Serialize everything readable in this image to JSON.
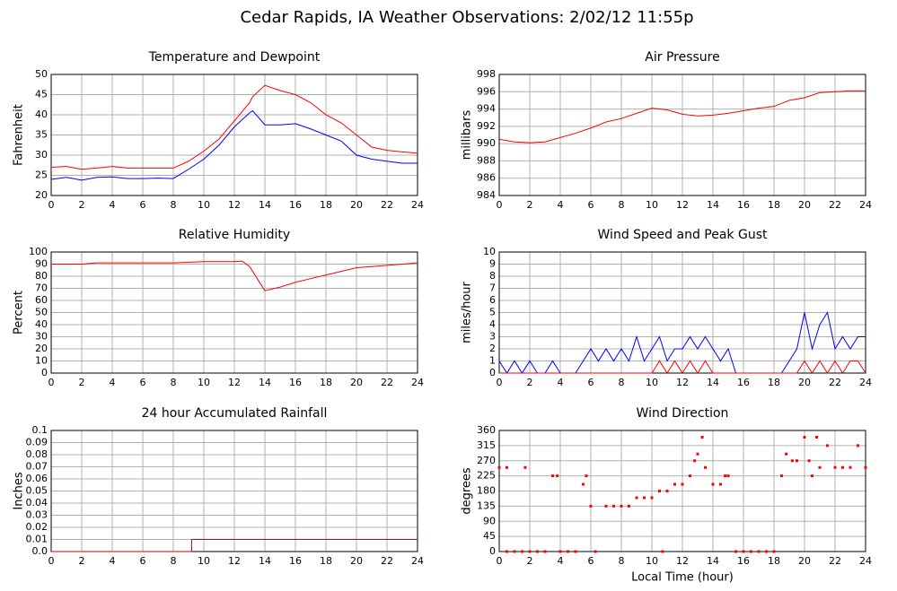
{
  "title": "Cedar Rapids, IA Weather Observations: 2/02/12 11:55p",
  "chart_data": [
    {
      "type": "line",
      "title": "Temperature and Dewpoint",
      "ylabel": "Fahrenheit",
      "x": [
        0,
        1,
        2,
        3,
        4,
        5,
        6,
        7,
        8,
        9,
        10,
        11,
        12,
        13,
        13.2,
        14,
        15,
        16,
        17,
        18,
        19,
        20,
        21,
        22,
        23,
        24
      ],
      "series": [
        {
          "color": "#ff0000",
          "values": [
            27,
            27.2,
            26.5,
            26.8,
            27.2,
            26.8,
            26.8,
            26.8,
            26.8,
            28.5,
            31,
            34,
            38.5,
            43,
            44.5,
            47.3,
            46,
            45,
            43,
            40,
            38,
            35,
            32,
            31.2,
            30.8,
            30.5
          ]
        },
        {
          "color": "#0000ff",
          "values": [
            24,
            24.5,
            23.8,
            24.5,
            24.6,
            24.2,
            24.2,
            24.3,
            24.2,
            26.5,
            29,
            32.5,
            37,
            40.5,
            41,
            37.5,
            37.5,
            37.8,
            36.5,
            35,
            33.5,
            30,
            29,
            28.5,
            28,
            28
          ]
        }
      ],
      "xlim": [
        0,
        24
      ],
      "xticks": [
        0,
        2,
        4,
        6,
        8,
        10,
        12,
        14,
        16,
        18,
        20,
        22,
        24
      ],
      "ylim": [
        20,
        50
      ],
      "yticks": [
        20,
        25,
        30,
        35,
        40,
        45,
        50
      ],
      "grid": true
    },
    {
      "type": "line",
      "title": "Air Pressure",
      "ylabel": "millibars",
      "x": [
        0,
        1,
        2,
        3,
        4,
        5,
        6,
        7,
        8,
        9,
        10,
        11,
        12,
        13,
        14,
        15,
        16,
        17,
        18,
        19,
        20,
        21,
        22,
        23,
        24
      ],
      "series": [
        {
          "color": "#ff0000",
          "values": [
            990.5,
            990.2,
            990.1,
            990.2,
            990.7,
            991.2,
            991.8,
            992.5,
            992.9,
            993.5,
            994.1,
            993.9,
            993.4,
            993.2,
            993.3,
            993.5,
            993.8,
            994.1,
            994.3,
            995,
            995.3,
            995.9,
            996,
            996.1,
            996.1
          ]
        }
      ],
      "xlim": [
        0,
        24
      ],
      "xticks": [
        0,
        2,
        4,
        6,
        8,
        10,
        12,
        14,
        16,
        18,
        20,
        22,
        24
      ],
      "ylim": [
        984,
        998
      ],
      "yticks": [
        984,
        986,
        988,
        990,
        992,
        994,
        996,
        998
      ],
      "grid": true
    },
    {
      "type": "line",
      "title": "Relative Humidity",
      "ylabel": "Percent",
      "x": [
        0,
        2,
        3,
        4,
        6,
        8,
        10,
        12,
        12.5,
        13,
        13.5,
        14,
        15,
        16,
        17,
        18,
        19,
        20,
        21,
        22,
        23,
        24
      ],
      "series": [
        {
          "color": "#ff0000",
          "values": [
            90,
            90,
            91,
            91,
            91,
            91,
            92,
            92,
            92.5,
            88,
            78,
            68,
            71,
            75,
            78,
            81,
            84,
            87,
            88,
            89,
            90,
            91
          ]
        }
      ],
      "xlim": [
        0,
        24
      ],
      "xticks": [
        0,
        2,
        4,
        6,
        8,
        10,
        12,
        14,
        16,
        18,
        20,
        22,
        24
      ],
      "ylim": [
        0,
        100
      ],
      "yticks": [
        0,
        10,
        20,
        30,
        40,
        50,
        60,
        70,
        80,
        90,
        100
      ],
      "grid": true
    },
    {
      "type": "line",
      "title": "Wind Speed and Peak Gust",
      "ylabel": "miles/hour",
      "x": [
        0,
        0.5,
        1,
        1.5,
        2,
        2.5,
        3,
        3.5,
        4,
        4.5,
        5,
        5.5,
        6,
        6.5,
        7,
        7.5,
        8,
        8.5,
        9,
        9.5,
        10,
        10.5,
        11,
        11.5,
        12,
        12.5,
        13,
        13.5,
        14,
        14.5,
        15,
        15.5,
        16,
        16.5,
        17,
        17.5,
        18,
        18.5,
        19,
        19.5,
        20,
        20.5,
        21,
        21.5,
        22,
        22.5,
        23,
        23.5,
        24
      ],
      "series": [
        {
          "color": "#0000ff",
          "values": [
            1,
            0,
            1,
            0,
            1,
            0,
            0,
            1,
            0,
            0,
            0,
            1,
            2,
            1,
            2,
            1,
            2,
            1,
            3,
            1,
            2,
            3,
            1,
            2,
            2,
            3,
            2,
            3,
            2,
            1,
            2,
            0,
            0,
            0,
            0,
            0,
            0,
            0,
            1,
            2,
            5,
            2,
            4,
            5,
            2,
            3,
            2,
            3,
            3
          ]
        },
        {
          "color": "#ff0000",
          "values": [
            0,
            0,
            0,
            0,
            0,
            0,
            0,
            0,
            0,
            0,
            0,
            0,
            0,
            0,
            0,
            0,
            0,
            0,
            0,
            0,
            0,
            1,
            0,
            1,
            0,
            1,
            0,
            1,
            0,
            0,
            0,
            0,
            0,
            0,
            0,
            0,
            0,
            0,
            0,
            0,
            1,
            0,
            1,
            0,
            1,
            0,
            1,
            1,
            0
          ]
        }
      ],
      "xlim": [
        0,
        24
      ],
      "xticks": [
        0,
        2,
        4,
        6,
        8,
        10,
        12,
        14,
        16,
        18,
        20,
        22,
        24
      ],
      "ylim": [
        0,
        10
      ],
      "yticks": [
        0,
        1,
        2,
        3,
        4,
        5,
        6,
        7,
        8,
        9,
        10
      ],
      "grid": true
    },
    {
      "type": "line",
      "title": "24 hour Accumulated Rainfall",
      "ylabel": "Inches",
      "x": [
        0,
        9.2,
        9.2,
        24
      ],
      "series": [
        {
          "color": "#cc0000",
          "values": [
            0,
            0,
            0.01,
            0.01
          ]
        }
      ],
      "xlim": [
        0,
        24
      ],
      "xticks": [
        0,
        2,
        4,
        6,
        8,
        10,
        12,
        14,
        16,
        18,
        20,
        22,
        24
      ],
      "ylim": [
        0,
        0.1
      ],
      "yticks": [
        {
          "value": 0,
          "label": "0.0"
        },
        0.01,
        0.02,
        0.03,
        0.04,
        0.05,
        0.06,
        0.07,
        0.08,
        0.09,
        0.1
      ],
      "grid": true
    },
    {
      "type": "scatter",
      "title": "Wind Direction",
      "ylabel": "degrees",
      "xlabel": "Local Time (hour)",
      "x": [
        0,
        0.5,
        1.7,
        0.5,
        1,
        1.5,
        2,
        2.5,
        3,
        3.5,
        3.8,
        4,
        4.5,
        5,
        5.5,
        5.7,
        6,
        6.3,
        7,
        7.5,
        8,
        8.5,
        9,
        9.5,
        10,
        10.5,
        10.7,
        11,
        11.5,
        12,
        12.5,
        12.8,
        13,
        13.3,
        13.5,
        14,
        14.5,
        14.8,
        15,
        15.5,
        16,
        16.5,
        17,
        17.5,
        18,
        18.5,
        18.8,
        19.2,
        19.5,
        20,
        20.3,
        20.5,
        20.8,
        21,
        21.5,
        22,
        22.5,
        23,
        23.5,
        24
      ],
      "values": [
        250,
        250,
        250,
        0,
        0,
        0,
        0,
        0,
        0,
        225,
        225,
        0,
        0,
        0,
        200,
        225,
        135,
        0,
        135,
        135,
        135,
        135,
        160,
        160,
        160,
        180,
        0,
        180,
        200,
        200,
        225,
        270,
        290,
        340,
        250,
        200,
        200,
        225,
        225,
        0,
        0,
        0,
        0,
        0,
        0,
        225,
        290,
        270,
        270,
        340,
        270,
        225,
        340,
        250,
        315,
        250,
        250,
        250,
        315,
        250
      ],
      "color": "#ff0000",
      "xlim": [
        0,
        24
      ],
      "xticks": [
        0,
        2,
        4,
        6,
        8,
        10,
        12,
        14,
        16,
        18,
        20,
        22,
        24
      ],
      "ylim": [
        0,
        360
      ],
      "yticks": [
        0,
        45,
        90,
        135,
        180,
        225,
        270,
        315,
        360
      ],
      "grid": true
    }
  ]
}
